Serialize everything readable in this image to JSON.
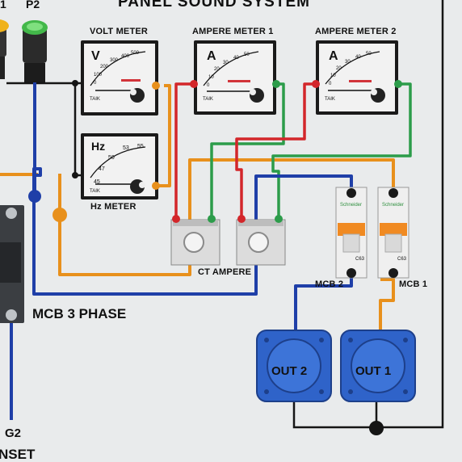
{
  "diagram": {
    "title": "PANEL SOUND SYSTEM",
    "pilot_lamps": [
      "1",
      "P2"
    ],
    "meters": {
      "volt": {
        "label": "VOLT METER",
        "unit": "V",
        "scale": [
          "0",
          "100",
          "200",
          "300",
          "400",
          "500"
        ],
        "brand": "TAIK"
      },
      "hz": {
        "label": "Hz METER",
        "unit": "Hz",
        "scale": [
          "45",
          "47",
          "50",
          "53",
          "55"
        ],
        "brand": "TAIK"
      },
      "amp1": {
        "label": "AMPERE METER 1",
        "unit": "A",
        "scale": [
          "0",
          "10",
          "20",
          "30",
          "40",
          "50"
        ],
        "brand": "TAIK"
      },
      "amp2": {
        "label": "AMPERE METER 2",
        "unit": "A",
        "scale": [
          "0",
          "10",
          "20",
          "30",
          "40",
          "50"
        ],
        "brand": "TAIK"
      }
    },
    "ct_label": "CT AMPERE",
    "mcb_main_label": "MCB 3 PHASE",
    "mcb1_label": "MCB 1",
    "mcb2_label": "MCB 2",
    "mcb_rating": "C63",
    "mcb_brand": "Schneider",
    "out1_label": "OUT 1",
    "out2_label": "OUT 2",
    "ground_label": "G2",
    "bottom_label": "NSET",
    "colors": {
      "wire_orange": "#e8901c",
      "wire_green": "#2c9c4a",
      "wire_red": "#d3262a",
      "wire_blue": "#1f3fa8",
      "wire_black": "#151515",
      "outlet_blue": "#2f63c9",
      "mcb_orange": "#f08a22"
    }
  }
}
